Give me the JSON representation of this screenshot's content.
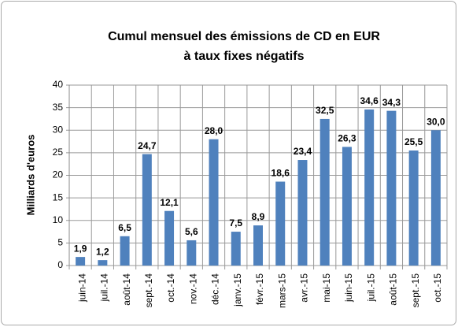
{
  "chart_data": {
    "type": "bar",
    "title": [
      "Cumul mensuel des émissions de CD en EUR",
      "à taux fixes négatifs"
    ],
    "y_label": "Milliards d'euros",
    "categories": [
      "juin-14",
      "juil.-14",
      "août-14",
      "sept.-14",
      "oct.-14",
      "nov.-14",
      "déc.-14",
      "janv.-15",
      "févr.-15",
      "mars-15",
      "avr.-15",
      "mai-15",
      "juin-15",
      "juil.-15",
      "août-15",
      "sept.-15",
      "oct.-15"
    ],
    "values": [
      1.9,
      1.2,
      6.5,
      24.7,
      12.1,
      5.6,
      28.0,
      7.5,
      8.9,
      18.6,
      23.4,
      32.5,
      26.3,
      34.6,
      34.3,
      25.5,
      30.0
    ],
    "value_labels": [
      "1,9",
      "1,2",
      "6,5",
      "24,7",
      "12,1",
      "5,6",
      "28,0",
      "7,5",
      "8,9",
      "18,6",
      "23,4",
      "32,5",
      "26,3",
      "34,6",
      "34,3",
      "25,5",
      "30,0"
    ],
    "color": "#4f81bd",
    "ylim": [
      0,
      40
    ],
    "yticks": [
      0,
      5,
      10,
      15,
      20,
      25,
      30,
      35,
      40
    ],
    "grid": true
  }
}
